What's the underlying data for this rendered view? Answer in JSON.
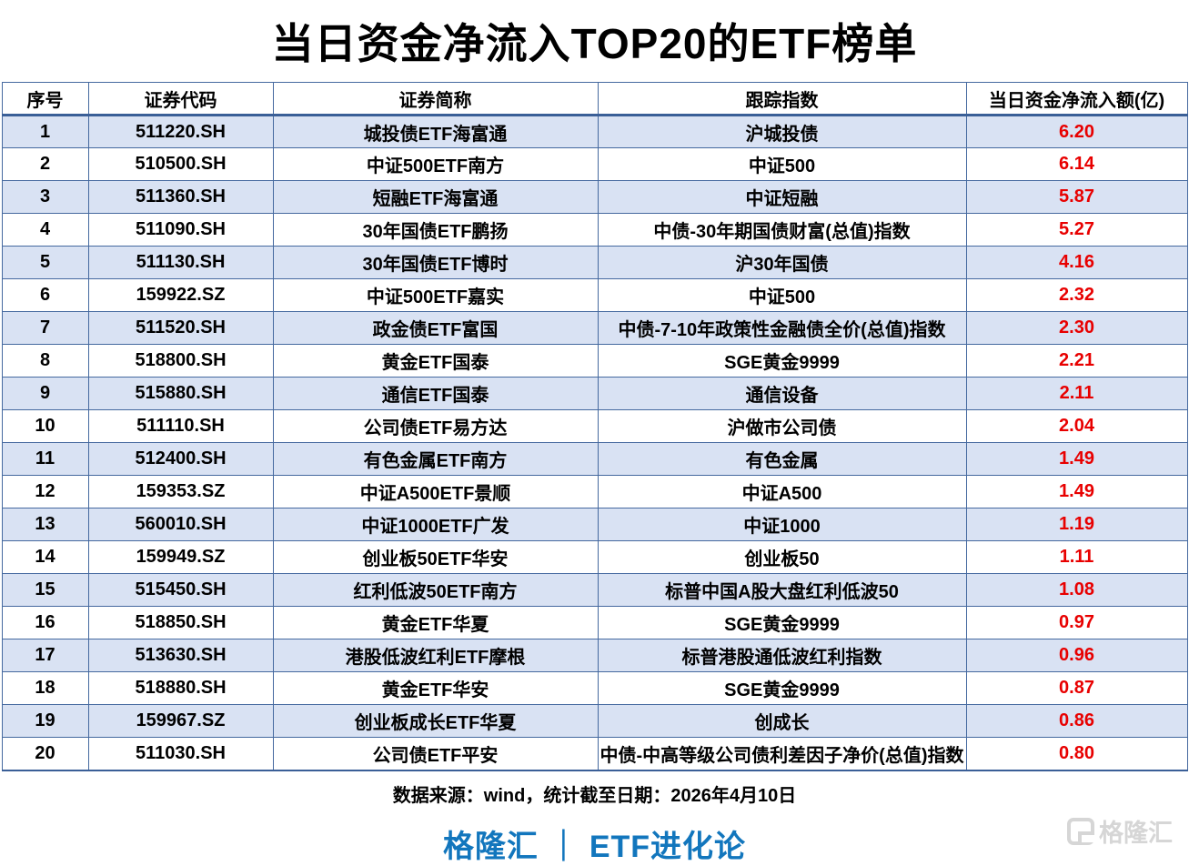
{
  "title": "当日资金净流入TOP20的ETF榜单",
  "table": {
    "columns": [
      "序号",
      "证券代码",
      "证券简称",
      "跟踪指数",
      "当日资金净流入额(亿)"
    ],
    "rows": [
      {
        "no": "1",
        "code": "511220.SH",
        "name": "城投债ETF海富通",
        "index": "沪城投债",
        "value": "6.20"
      },
      {
        "no": "2",
        "code": "510500.SH",
        "name": "中证500ETF南方",
        "index": "中证500",
        "value": "6.14"
      },
      {
        "no": "3",
        "code": "511360.SH",
        "name": "短融ETF海富通",
        "index": "中证短融",
        "value": "5.87"
      },
      {
        "no": "4",
        "code": "511090.SH",
        "name": "30年国债ETF鹏扬",
        "index": "中债-30年期国债财富(总值)指数",
        "value": "5.27"
      },
      {
        "no": "5",
        "code": "511130.SH",
        "name": "30年国债ETF博时",
        "index": "沪30年国债",
        "value": "4.16"
      },
      {
        "no": "6",
        "code": "159922.SZ",
        "name": "中证500ETF嘉实",
        "index": "中证500",
        "value": "2.32"
      },
      {
        "no": "7",
        "code": "511520.SH",
        "name": "政金债ETF富国",
        "index": "中债-7-10年政策性金融债全价(总值)指数",
        "value": "2.30"
      },
      {
        "no": "8",
        "code": "518800.SH",
        "name": "黄金ETF国泰",
        "index": "SGE黄金9999",
        "value": "2.21"
      },
      {
        "no": "9",
        "code": "515880.SH",
        "name": "通信ETF国泰",
        "index": "通信设备",
        "value": "2.11"
      },
      {
        "no": "10",
        "code": "511110.SH",
        "name": "公司债ETF易方达",
        "index": "沪做市公司债",
        "value": "2.04"
      },
      {
        "no": "11",
        "code": "512400.SH",
        "name": "有色金属ETF南方",
        "index": "有色金属",
        "value": "1.49"
      },
      {
        "no": "12",
        "code": "159353.SZ",
        "name": "中证A500ETF景顺",
        "index": "中证A500",
        "value": "1.49"
      },
      {
        "no": "13",
        "code": "560010.SH",
        "name": "中证1000ETF广发",
        "index": "中证1000",
        "value": "1.19"
      },
      {
        "no": "14",
        "code": "159949.SZ",
        "name": "创业板50ETF华安",
        "index": "创业板50",
        "value": "1.11"
      },
      {
        "no": "15",
        "code": "515450.SH",
        "name": "红利低波50ETF南方",
        "index": "标普中国A股大盘红利低波50",
        "value": "1.08"
      },
      {
        "no": "16",
        "code": "518850.SH",
        "name": "黄金ETF华夏",
        "index": "SGE黄金9999",
        "value": "0.97"
      },
      {
        "no": "17",
        "code": "513630.SH",
        "name": "港股低波红利ETF摩根",
        "index": "标普港股通低波红利指数",
        "value": "0.96"
      },
      {
        "no": "18",
        "code": "518880.SH",
        "name": "黄金ETF华安",
        "index": "SGE黄金9999",
        "value": "0.87"
      },
      {
        "no": "19",
        "code": "159967.SZ",
        "name": "创业板成长ETF华夏",
        "index": "创成长",
        "value": "0.86"
      },
      {
        "no": "20",
        "code": "511030.SH",
        "name": "公司债ETF平安",
        "index": "中债-中高等级公司债利差因子净价(总值)指数",
        "value": "0.80"
      }
    ]
  },
  "chart_data": {
    "type": "table",
    "title": "当日资金净流入TOP20的ETF榜单",
    "columns": [
      "序号",
      "证券代码",
      "证券简称",
      "跟踪指数",
      "当日资金净流入额(亿)"
    ],
    "categories": [
      "城投债ETF海富通",
      "中证500ETF南方",
      "短融ETF海富通",
      "30年国债ETF鹏扬",
      "30年国债ETF博时",
      "中证500ETF嘉实",
      "政金债ETF富国",
      "黄金ETF国泰",
      "通信ETF国泰",
      "公司债ETF易方达",
      "有色金属ETF南方",
      "中证A500ETF景顺",
      "中证1000ETF广发",
      "创业板50ETF华安",
      "红利低波50ETF南方",
      "黄金ETF华夏",
      "港股低波红利ETF摩根",
      "黄金ETF华安",
      "创业板成长ETF华夏",
      "公司债ETF平安"
    ],
    "values": [
      6.2,
      6.14,
      5.87,
      5.27,
      4.16,
      2.32,
      2.3,
      2.21,
      2.11,
      2.04,
      1.49,
      1.49,
      1.19,
      1.11,
      1.08,
      0.97,
      0.96,
      0.87,
      0.86,
      0.8
    ],
    "value_label": "当日资金净流入额(亿)"
  },
  "footer": {
    "source_note": "数据来源：wind，统计截至日期：2026年4月10日",
    "branding": "格隆汇 ｜ ETF进化论",
    "watermark": "格隆汇"
  },
  "colors": {
    "value_red": "#e80000",
    "row_stripe": "#d9e2f3",
    "table_border": "#45699f",
    "brand_blue": "#1276bd",
    "watermark_gray": "#d6d6d6"
  }
}
